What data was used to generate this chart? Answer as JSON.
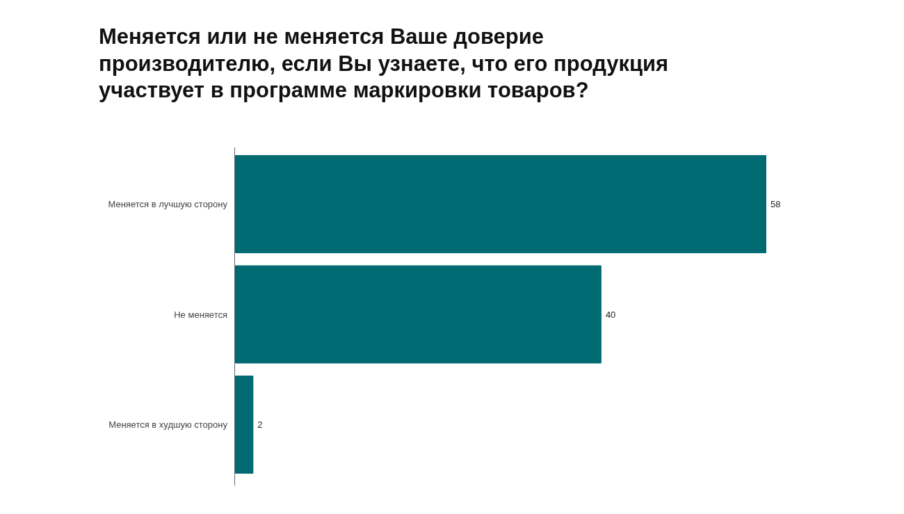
{
  "chart_data": {
    "type": "bar",
    "orientation": "horizontal",
    "title": "Меняется или не меняется Ваше доверие производителю, если Вы узнаете, что его продукция участвует в программе маркировки товаров?",
    "categories": [
      "Меняется в лучшую сторону",
      "Не меняется",
      "Меняется в худшую сторону"
    ],
    "values": [
      58,
      40,
      2
    ],
    "color": "#006a73",
    "data_labels": true
  }
}
